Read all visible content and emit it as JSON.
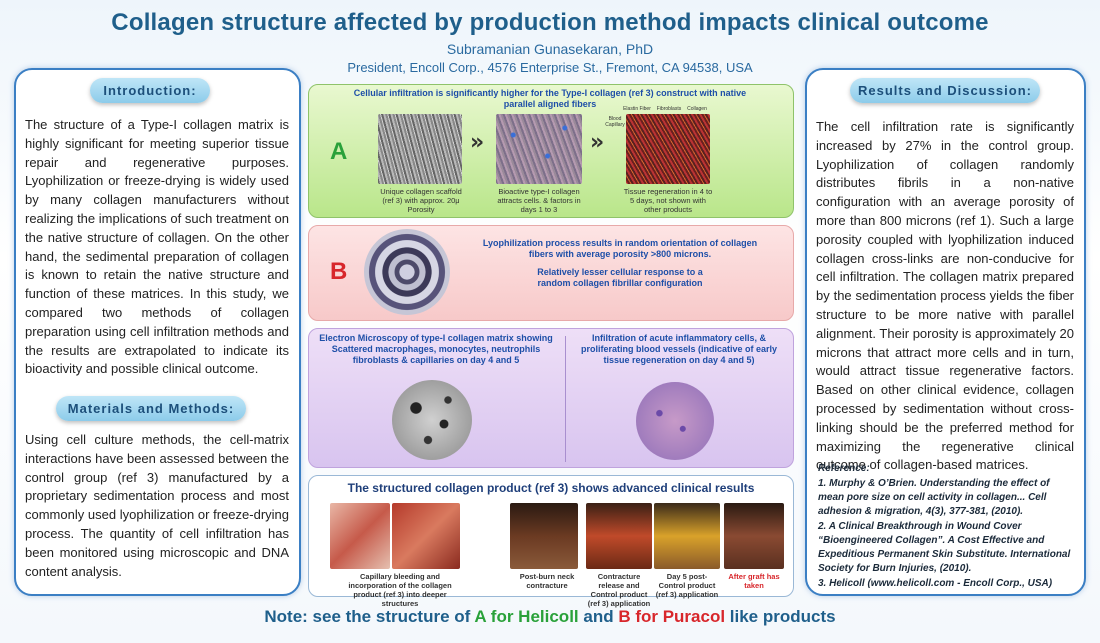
{
  "header": {
    "title": "Collagen structure affected by production method impacts clinical outcome",
    "author": "Subramanian Gunasekaran, PhD",
    "affiliation": "President, Encoll Corp., 4576 Enterprise St., Fremont, CA 94538, USA"
  },
  "left": {
    "intro_title": "Introduction:",
    "intro_text": "The structure of a Type-I collagen matrix is highly significant for meeting superior tissue repair and regenerative purposes. Lyophilization or freeze-drying is widely used by many collagen manufacturers without realizing the implications of such treatment on the native structure of collagen.  On the other hand, the sedimental preparation of collagen is known to retain the native structure and function of these matrices.  In this study, we compared two methods of collagen preparation using cell infiltration methods and the results are extrapolated to indicate its bioactivity and possible clinical outcome.",
    "methods_title": "Materials and Methods:",
    "methods_text": "Using cell culture methods, the cell-matrix interactions have been assessed between the control group (ref 3) manufactured by a proprietary sedimentation process and most commonly used lyophilization or freeze-drying process.  The quantity of cell infiltration has been monitored using microscopic and DNA content analysis."
  },
  "center": {
    "a_caption": "Cellular infiltration is significantly higher for the Type-I collagen (ref 3) construct with native parallel aligned fibers",
    "a_letter": "A",
    "a_img1_caption": "Unique collagen scaffold (ref 3) with approx. 20μ Porosity",
    "a_img2_caption": "Bioactive type-I collagen attracts cells. & factors in days 1 to 3",
    "a_img3_caption": "Tissue regeneration in 4 to 5 days, not shown with other products",
    "a_label_elastin": "Elastin Fiber",
    "a_label_fibroblasts": "Fibroblasts",
    "a_label_collagen": "Collagen",
    "a_label_blood": "Blood Capillary",
    "arrow_glyph": "»",
    "b_letter": "B",
    "b_caption1": "Lyophilization process results in random orientation of collagen fibers with average porosity >800 microns.",
    "b_caption2": "Relatively lesser cellular response to a random collagen fibrillar configuration",
    "c_caption_left": "Electron Microscopy of type-I collagen matrix showing Scattered macrophages, monocytes, neutrophils fibroblasts & capillaries on day 4 and 5",
    "c_caption_right": "Infiltration of acute inflammatory cells, & proliferating blood vessels (indicative of early tissue regeneration on day 4 and 5)",
    "d_title": "The structured collagen product (ref 3) shows advanced clinical results",
    "d_cap1": "Capillary bleeding and incorporation of the collagen product (ref 3) into deeper structures",
    "d_cap2": "Post-burn neck contracture",
    "d_cap3": "Contracture release and Control product (ref 3) application",
    "d_cap4": "Day 5 post-Control product (ref 3) application",
    "d_cap5": "After graft has taken"
  },
  "right": {
    "results_title": "Results and Discussion:",
    "results_text": "The cell infiltration rate is significantly increased by 27% in the control group.  Lyophilization of collagen randomly distributes fibrils in a non-native configuration with an average porosity of more than 800 microns (ref 1).  Such a large porosity coupled with lyophilization induced collagen cross-links are non-conducive for cell infiltration.  The collagen matrix prepared by the sedimentation process yields the fiber structure to be more native with parallel alignment.  Their porosity is approximately 20 microns that attract more cells and in turn, would attract tissue regenerative factors.  Based on other clinical evidence, collagen processed by sedimentation without cross-linking should be the preferred method for maximizing the regenerative clinical outcome of collagen-based matrices.",
    "ref_title": "Reference:",
    "ref1": "1. Murphy & O’Brien. Understanding the effect of mean pore size on cell activity in collagen... Cell adhesion & migration, 4(3), 377-381, (2010).",
    "ref2": "2. A Clinical Breakthrough in Wound Cover “Bioengineered Collagen”. A Cost Effective and Expeditious Permanent Skin Substitute. International Society for Burn Injuries, (2010).",
    "ref3": "3. Helicoll (www.helicoll.com - Encoll Corp., USA)"
  },
  "footer": {
    "note_pre": "Note: see the structure of ",
    "note_a": "A for Helicoll",
    "note_mid": " and ",
    "note_b": "B for Puracol",
    "note_post": " like products"
  },
  "colors": {
    "title_blue": "#1f5f8b",
    "panel_border": "#3b7fc4",
    "green_letter": "#2aa13a",
    "red_letter": "#d8262b",
    "red_text": "#d8262b"
  }
}
